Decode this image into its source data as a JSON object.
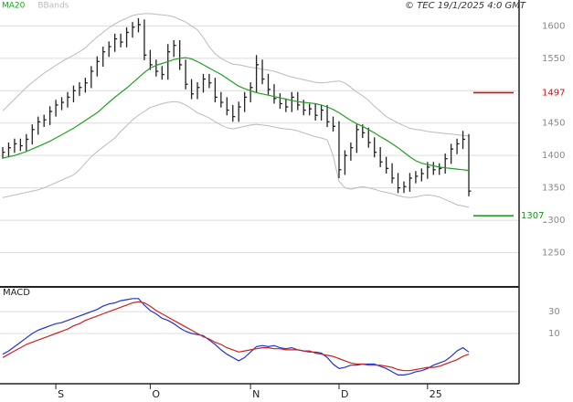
{
  "chart_data": [
    {
      "type": "ohlc",
      "legend_credit": "© TEC 19/1/2025 4:0 GMT",
      "categories": [
        null,
        null,
        null,
        null,
        null,
        null,
        null,
        null,
        null,
        "S",
        null,
        null,
        null,
        null,
        null,
        null,
        null,
        null,
        null,
        null,
        null,
        null,
        null,
        null,
        null,
        "O",
        null,
        null,
        null,
        null,
        null,
        null,
        null,
        null,
        null,
        null,
        null,
        null,
        null,
        null,
        null,
        null,
        "N",
        null,
        null,
        null,
        null,
        null,
        null,
        null,
        null,
        null,
        null,
        null,
        null,
        null,
        null,
        "D",
        null,
        null,
        null,
        null,
        null,
        null,
        null,
        null,
        null,
        null,
        null,
        null,
        null,
        null,
        "25",
        null,
        null,
        null,
        null,
        null,
        null,
        null
      ],
      "high": [
        1413,
        1420,
        1426,
        1426,
        1433,
        1448,
        1460,
        1463,
        1476,
        1486,
        1490,
        1498,
        1508,
        1513,
        1520,
        1538,
        1553,
        1568,
        1576,
        1588,
        1588,
        1598,
        1606,
        1612,
        1610,
        1563,
        1548,
        1538,
        1572,
        1578,
        1578,
        1548,
        1518,
        1513,
        1526,
        1526,
        1520,
        1498,
        1490,
        1478,
        1483,
        1498,
        1513,
        1555,
        1548,
        1526,
        1510,
        1496,
        1488,
        1498,
        1498,
        1486,
        1480,
        1480,
        1478,
        1478,
        1460,
        1453,
        1408,
        1420,
        1448,
        1448,
        1443,
        1428,
        1413,
        1398,
        1388,
        1373,
        1360,
        1373,
        1376,
        1380,
        1390,
        1390,
        1388,
        1403,
        1418,
        1426,
        1438,
        1433
      ],
      "low": [
        1395,
        1397,
        1404,
        1407,
        1407,
        1417,
        1432,
        1444,
        1447,
        1460,
        1470,
        1474,
        1482,
        1492,
        1497,
        1504,
        1522,
        1537,
        1552,
        1560,
        1567,
        1567,
        1582,
        1590,
        1547,
        1532,
        1522,
        1517,
        1517,
        1552,
        1532,
        1502,
        1487,
        1487,
        1497,
        1504,
        1482,
        1474,
        1462,
        1452,
        1452,
        1467,
        1482,
        1497,
        1510,
        1494,
        1480,
        1472,
        1467,
        1467,
        1470,
        1462,
        1462,
        1454,
        1454,
        1444,
        1437,
        1365,
        1370,
        1392,
        1404,
        1427,
        1412,
        1397,
        1382,
        1372,
        1357,
        1342,
        1342,
        1344,
        1357,
        1360,
        1364,
        1370,
        1370,
        1372,
        1387,
        1402,
        1410,
        1337
      ],
      "close": [
        1405,
        1412,
        1418,
        1415,
        1425,
        1440,
        1452,
        1455,
        1468,
        1478,
        1482,
        1490,
        1500,
        1505,
        1512,
        1530,
        1545,
        1560,
        1568,
        1580,
        1575,
        1590,
        1598,
        1602,
        1555,
        1540,
        1530,
        1525,
        1560,
        1570,
        1540,
        1510,
        1495,
        1505,
        1518,
        1512,
        1490,
        1482,
        1470,
        1460,
        1475,
        1490,
        1505,
        1540,
        1518,
        1502,
        1488,
        1480,
        1475,
        1490,
        1478,
        1470,
        1472,
        1462,
        1470,
        1452,
        1445,
        1378,
        1400,
        1412,
        1440,
        1435,
        1420,
        1405,
        1390,
        1380,
        1365,
        1350,
        1352,
        1365,
        1368,
        1372,
        1382,
        1378,
        1380,
        1395,
        1410,
        1418,
        1425,
        1345
      ],
      "bar_color": "#222222",
      "series": [
        {
          "name": "MA20",
          "color": "#22a022",
          "values": [
            1396,
            1398,
            1400,
            1403,
            1406,
            1410,
            1414,
            1418,
            1422,
            1427,
            1432,
            1437,
            1442,
            1448,
            1454,
            1460,
            1466,
            1474,
            1482,
            1490,
            1497,
            1504,
            1512,
            1520,
            1528,
            1535,
            1539,
            1542,
            1545,
            1548,
            1550,
            1551,
            1549,
            1545,
            1540,
            1535,
            1530,
            1525,
            1519,
            1513,
            1507,
            1503,
            1500,
            1497,
            1495,
            1493,
            1491,
            1489,
            1487,
            1485,
            1483,
            1482,
            1481,
            1480,
            1478,
            1475,
            1471,
            1466,
            1460,
            1454,
            1449,
            1445,
            1440,
            1435,
            1429,
            1424,
            1418,
            1412,
            1405,
            1398,
            1392,
            1388,
            1386,
            1384,
            1382,
            1381,
            1380,
            1379,
            1378,
            1377
          ]
        }
      ],
      "bands": {
        "name": "BBands",
        "color": "#bbbbbb",
        "upper": [
          1469,
          1478,
          1487,
          1496,
          1505,
          1513,
          1520,
          1527,
          1533,
          1539,
          1545,
          1550,
          1555,
          1560,
          1566,
          1575,
          1583,
          1590,
          1597,
          1603,
          1608,
          1612,
          1616,
          1618,
          1619,
          1619,
          1618,
          1617,
          1616,
          1614,
          1610,
          1606,
          1600,
          1594,
          1582,
          1568,
          1557,
          1550,
          1545,
          1541,
          1540,
          1538,
          1536,
          1535,
          1533,
          1532,
          1530,
          1527,
          1524,
          1521,
          1519,
          1517,
          1515,
          1513,
          1512,
          1513,
          1514,
          1515,
          1512,
          1505,
          1498,
          1492,
          1485,
          1476,
          1468,
          1460,
          1455,
          1450,
          1446,
          1442,
          1440,
          1439,
          1437,
          1436,
          1435,
          1434,
          1433,
          1432,
          1431,
          1430
        ],
        "lower": [
          1335,
          1337,
          1339,
          1341,
          1343,
          1345,
          1347,
          1350,
          1354,
          1358,
          1362,
          1366,
          1370,
          1378,
          1388,
          1398,
          1406,
          1413,
          1420,
          1427,
          1437,
          1446,
          1455,
          1462,
          1468,
          1474,
          1477,
          1480,
          1482,
          1483,
          1482,
          1478,
          1472,
          1466,
          1462,
          1458,
          1452,
          1447,
          1443,
          1441,
          1443,
          1445,
          1447,
          1448,
          1447,
          1446,
          1444,
          1442,
          1441,
          1440,
          1438,
          1435,
          1432,
          1429,
          1427,
          1424,
          1400,
          1360,
          1350,
          1348,
          1350,
          1352,
          1350,
          1348,
          1345,
          1343,
          1341,
          1338,
          1336,
          1335,
          1336,
          1338,
          1339,
          1338,
          1336,
          1332,
          1328,
          1324,
          1322,
          1320
        ]
      },
      "levels": [
        {
          "value": 1497,
          "color": "#cc1111"
        },
        {
          "value": 1307,
          "color": "#119911"
        }
      ],
      "ylim": [
        1200,
        1640
      ],
      "yticks": [
        1250,
        1300,
        1350,
        1400,
        1450,
        1500,
        1550,
        1600
      ],
      "grid": true
    },
    {
      "type": "line",
      "title": "MACD",
      "series": [
        {
          "color": "#2233cc",
          "values": [
            -9,
            -6,
            -2,
            2,
            6,
            10,
            13,
            15,
            17,
            19,
            20,
            22,
            24,
            26,
            28,
            30,
            32,
            35,
            37,
            38,
            40,
            41,
            42,
            42,
            36,
            31,
            28,
            24,
            22,
            19,
            15,
            12,
            10,
            9,
            8,
            4,
            0,
            -5,
            -9,
            -12,
            -15,
            -12,
            -7,
            -2,
            -1,
            -2,
            -1,
            -3,
            -4,
            -3,
            -5,
            -6,
            -7,
            -7,
            -8,
            -12,
            -18,
            -22,
            -21,
            -19,
            -19,
            -18,
            -18,
            -18,
            -20,
            -22,
            -25,
            -28,
            -28,
            -27,
            -25,
            -24,
            -22,
            -19,
            -17,
            -15,
            -11,
            -6,
            -3,
            -7
          ]
        },
        {
          "color": "#cc2222",
          "values": [
            -12,
            -9,
            -6,
            -3,
            0,
            2,
            4,
            6,
            8,
            10,
            12,
            14,
            17,
            19,
            22,
            24,
            26,
            28,
            30,
            32,
            34,
            36,
            38,
            39,
            38,
            35,
            31,
            28,
            25,
            22,
            19,
            16,
            13,
            10,
            7,
            5,
            2,
            0,
            -3,
            -5,
            -7,
            -6,
            -5,
            -4,
            -3,
            -3,
            -4,
            -4,
            -5,
            -5,
            -5,
            -6,
            -6,
            -8,
            -9,
            -10,
            -11,
            -13,
            -15,
            -17,
            -18,
            -18,
            -19,
            -19,
            -19,
            -20,
            -21,
            -23,
            -24,
            -24,
            -23,
            -22,
            -21,
            -21,
            -20,
            -18,
            -16,
            -14,
            -11,
            -9
          ]
        }
      ],
      "ylim": [
        -36,
        51
      ],
      "yticks": [
        10,
        30
      ],
      "grid": true
    }
  ]
}
